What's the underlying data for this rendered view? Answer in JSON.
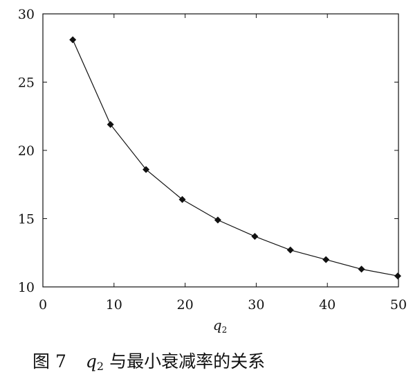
{
  "chart_data": {
    "type": "line",
    "xlabel": {
      "main": "q",
      "sub": "2"
    },
    "ylabel": "",
    "xlim": [
      0,
      50
    ],
    "ylim": [
      10,
      30
    ],
    "xticks": [
      0,
      10,
      20,
      30,
      40,
      50
    ],
    "yticks": [
      10,
      15,
      20,
      25,
      30
    ],
    "grid": false,
    "marker": "diamond",
    "series": [
      {
        "x": [
          4.2,
          9.5,
          14.5,
          19.6,
          24.6,
          29.8,
          34.8,
          39.8,
          44.8,
          49.9
        ],
        "y": [
          28.1,
          21.9,
          18.6,
          16.4,
          14.9,
          13.7,
          12.7,
          12.0,
          11.3,
          10.8
        ]
      }
    ]
  },
  "caption": {
    "prefix": "图 7",
    "var_main": "q",
    "var_sub": "2",
    "suffix": "与最小衰减率的关系"
  }
}
